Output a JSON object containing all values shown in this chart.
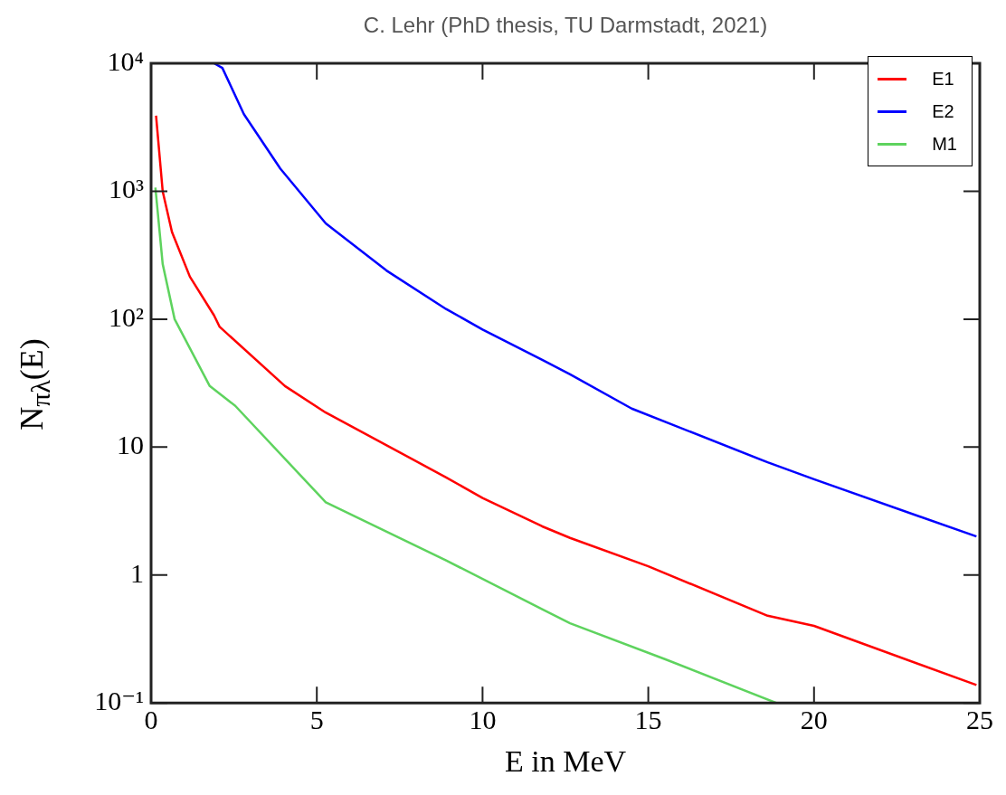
{
  "chart_data": {
    "type": "line",
    "xlabel": "E in MeV",
    "ylabel": "N$_{πλ}$(E)",
    "annotations": [
      "C. Lehr (PhD thesis, TU Darmstadt, 2021)"
    ],
    "log": "y",
    "xlim": [
      0,
      25
    ],
    "xticks": [
      0,
      5,
      10,
      15,
      20,
      25
    ],
    "ylim": [
      0.1,
      10000
    ],
    "yticks": [
      {
        "value": 0.1,
        "label": "10⁻¹"
      },
      1,
      10,
      {
        "value": 100,
        "label": "10²"
      },
      {
        "value": 1000,
        "label": "10³"
      },
      {
        "value": 10000,
        "label": "10⁴"
      }
    ],
    "legend": "top right",
    "series": [
      {
        "name": "E1",
        "color": "#ff0000",
        "x": [
          0.15,
          0.35,
          0.63,
          1.17,
          1.9,
          2.07,
          4.04,
          5.27,
          8.9,
          10,
          11.8,
          12.64,
          15,
          18.6,
          20,
          24.9
        ],
        "values": [
          3900,
          1000,
          480,
          215,
          107,
          87,
          30,
          18.6,
          5.8,
          4.0,
          2.4,
          1.95,
          1.17,
          0.48,
          0.4,
          0.138
        ]
      },
      {
        "name": "E2",
        "color": "#0000ff",
        "x": [
          1.9,
          2.15,
          2.8,
          3.9,
          5.27,
          7.1,
          8.9,
          10,
          11.8,
          12.64,
          14.5,
          18.6,
          20,
          24.9
        ],
        "values": [
          10000,
          9200,
          4000,
          1500,
          560,
          240,
          120,
          83,
          48,
          37,
          20,
          7.6,
          5.6,
          2.0
        ]
      },
      {
        "name": "M1",
        "color": "#5ed35e",
        "x": [
          0.13,
          0.35,
          0.71,
          1.77,
          2.54,
          5.27,
          8.9,
          11.8,
          12.64,
          15.5,
          18.86
        ],
        "values": [
          1070,
          270,
          100,
          30,
          21,
          3.7,
          1.3,
          0.54,
          0.42,
          0.22,
          0.1
        ]
      }
    ]
  }
}
